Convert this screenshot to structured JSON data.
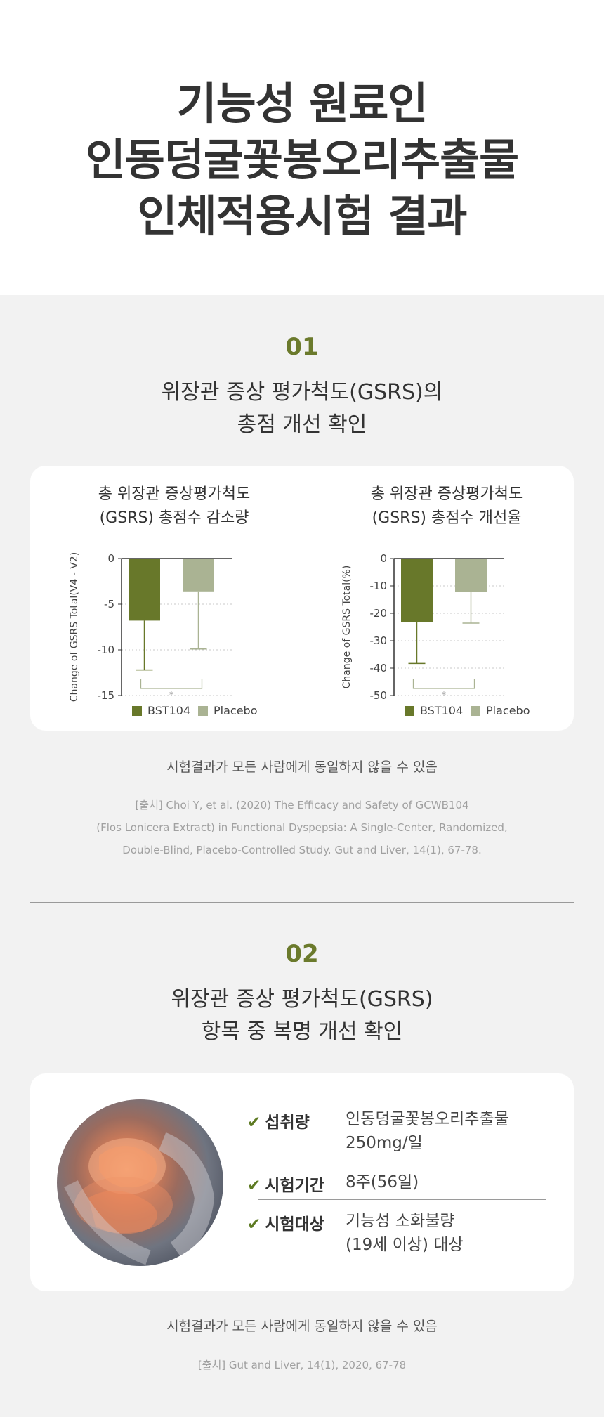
{
  "hero": {
    "title_lines": [
      "기능성 원료인",
      "인동덩굴꽃봉오리추출물",
      "인체적용시험 결과"
    ]
  },
  "section1": {
    "number": "01",
    "title_lines": [
      "위장관 증상 평가척도(GSRS)의",
      "총점 개선 확인"
    ],
    "note": "시험결과가 모든 사람에게 동일하지 않을 수 있음",
    "citation_lines": [
      "[출처] Choi Y, et al. (2020) The Efficacy and Safety of GCWB104",
      "(Flos Lonicera Extract) in Functional Dyspepsia: A Single-Center, Randomized,",
      "Double-Blind, Placebo-Controlled Study. Gut and Liver, 14(1), 67-78."
    ]
  },
  "chart_data": [
    {
      "type": "bar",
      "title_lines": [
        "총 위장관 증상평가척도",
        "(GSRS) 총점수 감소량"
      ],
      "ylabel": "Change of GSRS Total(V4 - V2)",
      "ylim": [
        -15,
        0
      ],
      "yticks": [
        0,
        -5,
        -10,
        -15
      ],
      "grid": "dotted horizontal",
      "categories": [
        "BST104",
        "Placebo"
      ],
      "series": [
        {
          "name": "BST104",
          "color": "#68782a",
          "value": -6.8,
          "error_end": -12.2
        },
        {
          "name": "Placebo",
          "color": "#aab393",
          "value": -3.6,
          "error_end": -9.9
        }
      ],
      "significance": "*",
      "legend_position": "bottom"
    },
    {
      "type": "bar",
      "title_lines": [
        "총 위장관 증상평가척도",
        "(GSRS) 총점수 개선율"
      ],
      "ylabel": "Change of GSRS Total(%)",
      "ylim": [
        -50,
        0
      ],
      "yticks": [
        0,
        -10,
        -20,
        -30,
        -40,
        -50
      ],
      "grid": "dotted horizontal",
      "categories": [
        "BST104",
        "Placebo"
      ],
      "series": [
        {
          "name": "BST104",
          "color": "#68782a",
          "value": -23.1,
          "error_end": -38.3
        },
        {
          "name": "Placebo",
          "color": "#aab393",
          "value": -12.1,
          "error_end": -23.6
        }
      ],
      "significance": "*",
      "legend_position": "bottom"
    }
  ],
  "section2": {
    "number": "02",
    "title_lines": [
      "위장관 증상 평가척도(GSRS)",
      "항목 중 복명 개선 확인"
    ],
    "check_icon": "✔",
    "info": [
      {
        "label": "섭취량",
        "value_lines": [
          "인동덩굴꽃봉오리추출물",
          "250mg/일"
        ]
      },
      {
        "label": "시험기간",
        "value_lines": [
          "8주(56일)"
        ]
      },
      {
        "label": "시험대상",
        "value_lines": [
          "기능성 소화불량",
          "(19세 이상) 대상"
        ]
      }
    ],
    "note": "시험결과가 모든 사람에게 동일하지 않을 수 있음",
    "citation": "[출처] Gut and Liver, 14(1), 2020, 67-78"
  },
  "colors": {
    "accent": "#6b7a2c",
    "bst104": "#68782a",
    "placebo": "#aab393",
    "background_gray": "#f2f2f2"
  }
}
